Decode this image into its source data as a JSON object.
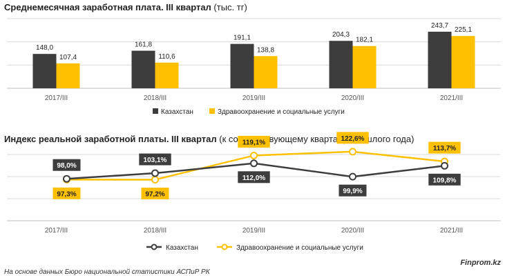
{
  "colors": {
    "kazakhstan": "#3d3d3d",
    "health": "#ffc000",
    "grid": "#d9d9d9",
    "axis": "#bfbfbf"
  },
  "chart_data": [
    {
      "type": "bar",
      "title_bold": "Среднемесячная заработная плата. III квартал",
      "title_normal": " (тыс. тг)",
      "categories": [
        "2017/III",
        "2018/III",
        "2019/III",
        "2020/III",
        "2021/III"
      ],
      "series": [
        {
          "name": "Казахстан",
          "values": [
            148.0,
            161.8,
            191.1,
            204.3,
            243.7
          ],
          "labels": [
            "148,0",
            "161,8",
            "191,1",
            "204,3",
            "243,7"
          ]
        },
        {
          "name": "Здравоохранение и социальные услуги",
          "values": [
            107.4,
            110.6,
            138.8,
            182.1,
            225.1
          ],
          "labels": [
            "107,4",
            "110,6",
            "138,8",
            "182,1",
            "225,1"
          ]
        }
      ],
      "ylim": [
        0,
        300
      ],
      "grid": true,
      "legend": "bottom"
    },
    {
      "type": "line",
      "title_bold": "Индекс реальной заработной платы. III квартал",
      "title_normal": " (к соответствующему кварталу прошлого года)",
      "categories": [
        "2017/III",
        "2018/III",
        "2019/III",
        "2020/III",
        "2021/III"
      ],
      "series": [
        {
          "name": "Казахстан",
          "values": [
            98.0,
            103.1,
            112.0,
            99.9,
            109.8
          ],
          "labels": [
            "98,0%",
            "103,1%",
            "112,0%",
            "99,9%",
            "109,8%"
          ],
          "label_pos": [
            "above",
            "above",
            "below",
            "below",
            "below"
          ]
        },
        {
          "name": "Здравоохранение и социальные услуги",
          "values": [
            97.3,
            97.2,
            119.1,
            122.6,
            113.7
          ],
          "labels": [
            "97,3%",
            "97,2%",
            "119,1%",
            "122,6%",
            "113,7%"
          ],
          "label_pos": [
            "below",
            "below",
            "above",
            "above",
            "above"
          ]
        }
      ],
      "legend": "bottom",
      "grid": true
    }
  ],
  "footer": {
    "source": "На основе данных Бюро национальной статистики АСПиР РК",
    "brand": "Finprom.kz"
  }
}
